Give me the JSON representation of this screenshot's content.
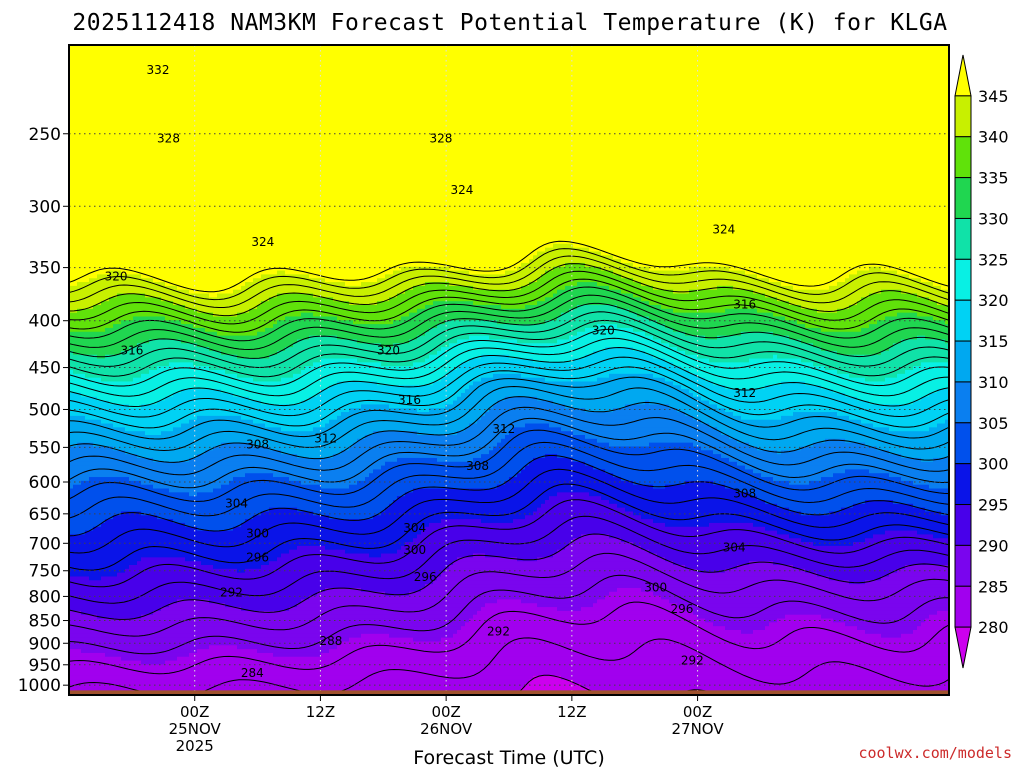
{
  "chart_data": {
    "type": "heatmap",
    "title": "2025112418 NAM3KM Forecast Potential Temperature (K) for KLGA",
    "xlabel": "Forecast Time (UTC)",
    "ylabel": "",
    "y_axis": {
      "scale": "log-pressure",
      "unit": "hPa",
      "range": [
        1025,
        200
      ],
      "ticks": [
        250,
        300,
        350,
        400,
        450,
        500,
        550,
        600,
        650,
        700,
        750,
        800,
        850,
        900,
        950,
        1000
      ]
    },
    "x_axis": {
      "range_hours": [
        -6,
        78
      ],
      "ticks": [
        {
          "hour": 6,
          "line1": "00Z",
          "line2": "25NOV",
          "line3": "2025"
        },
        {
          "hour": 18,
          "line1": "12Z",
          "line2": "",
          "line3": ""
        },
        {
          "hour": 30,
          "line1": "00Z",
          "line2": "26NOV",
          "line3": ""
        },
        {
          "hour": 42,
          "line1": "12Z",
          "line2": "",
          "line3": ""
        },
        {
          "hour": 54,
          "line1": "00Z",
          "line2": "27NOV",
          "line3": ""
        }
      ]
    },
    "colorbar": {
      "levels": [
        280,
        285,
        290,
        295,
        300,
        305,
        310,
        315,
        320,
        325,
        330,
        335,
        340,
        345
      ],
      "colors": [
        "#cc00ee",
        "#a100ee",
        "#7a05ee",
        "#4800ea",
        "#0a14e8",
        "#0050ec",
        "#0a7ff0",
        "#00a8f0",
        "#00d2f4",
        "#08f0e4",
        "#10e2a8",
        "#20d650",
        "#60e20a",
        "#c8f000",
        "#ffff00"
      ]
    },
    "contour_interval": 2,
    "contour_labels": [
      {
        "value": "332",
        "hour": 2.5,
        "p": 213
      },
      {
        "value": "328",
        "hour": 3.5,
        "p": 253
      },
      {
        "value": "328",
        "hour": 29.5,
        "p": 253
      },
      {
        "value": "324",
        "hour": 31.5,
        "p": 288
      },
      {
        "value": "324",
        "hour": 12.5,
        "p": 328
      },
      {
        "value": "324",
        "hour": 56.5,
        "p": 318
      },
      {
        "value": "320",
        "hour": -1.5,
        "p": 358
      },
      {
        "value": "320",
        "hour": 24.5,
        "p": 431
      },
      {
        "value": "320",
        "hour": 45,
        "p": 410
      },
      {
        "value": "316",
        "hour": 0,
        "p": 431
      },
      {
        "value": "316",
        "hour": 26.5,
        "p": 488
      },
      {
        "value": "316",
        "hour": 58.5,
        "p": 384
      },
      {
        "value": "312",
        "hour": 18.5,
        "p": 538
      },
      {
        "value": "312",
        "hour": 35.5,
        "p": 525
      },
      {
        "value": "312",
        "hour": 58.5,
        "p": 480
      },
      {
        "value": "308",
        "hour": 12,
        "p": 546
      },
      {
        "value": "308",
        "hour": 33,
        "p": 576
      },
      {
        "value": "308",
        "hour": 58.5,
        "p": 618
      },
      {
        "value": "304",
        "hour": 10,
        "p": 633
      },
      {
        "value": "304",
        "hour": 27,
        "p": 674
      },
      {
        "value": "304",
        "hour": 57.5,
        "p": 707
      },
      {
        "value": "300",
        "hour": 12,
        "p": 683
      },
      {
        "value": "300",
        "hour": 27,
        "p": 712
      },
      {
        "value": "300",
        "hour": 50,
        "p": 782
      },
      {
        "value": "296",
        "hour": 12,
        "p": 725
      },
      {
        "value": "296",
        "hour": 28,
        "p": 762
      },
      {
        "value": "296",
        "hour": 52.5,
        "p": 826
      },
      {
        "value": "292",
        "hour": 9.5,
        "p": 792
      },
      {
        "value": "292",
        "hour": 35,
        "p": 874
      },
      {
        "value": "292",
        "hour": 53.5,
        "p": 940
      },
      {
        "value": "288",
        "hour": 19,
        "p": 895
      },
      {
        "value": "284",
        "hour": 11.5,
        "p": 970
      }
    ],
    "credit": "coolwx.com/models"
  }
}
